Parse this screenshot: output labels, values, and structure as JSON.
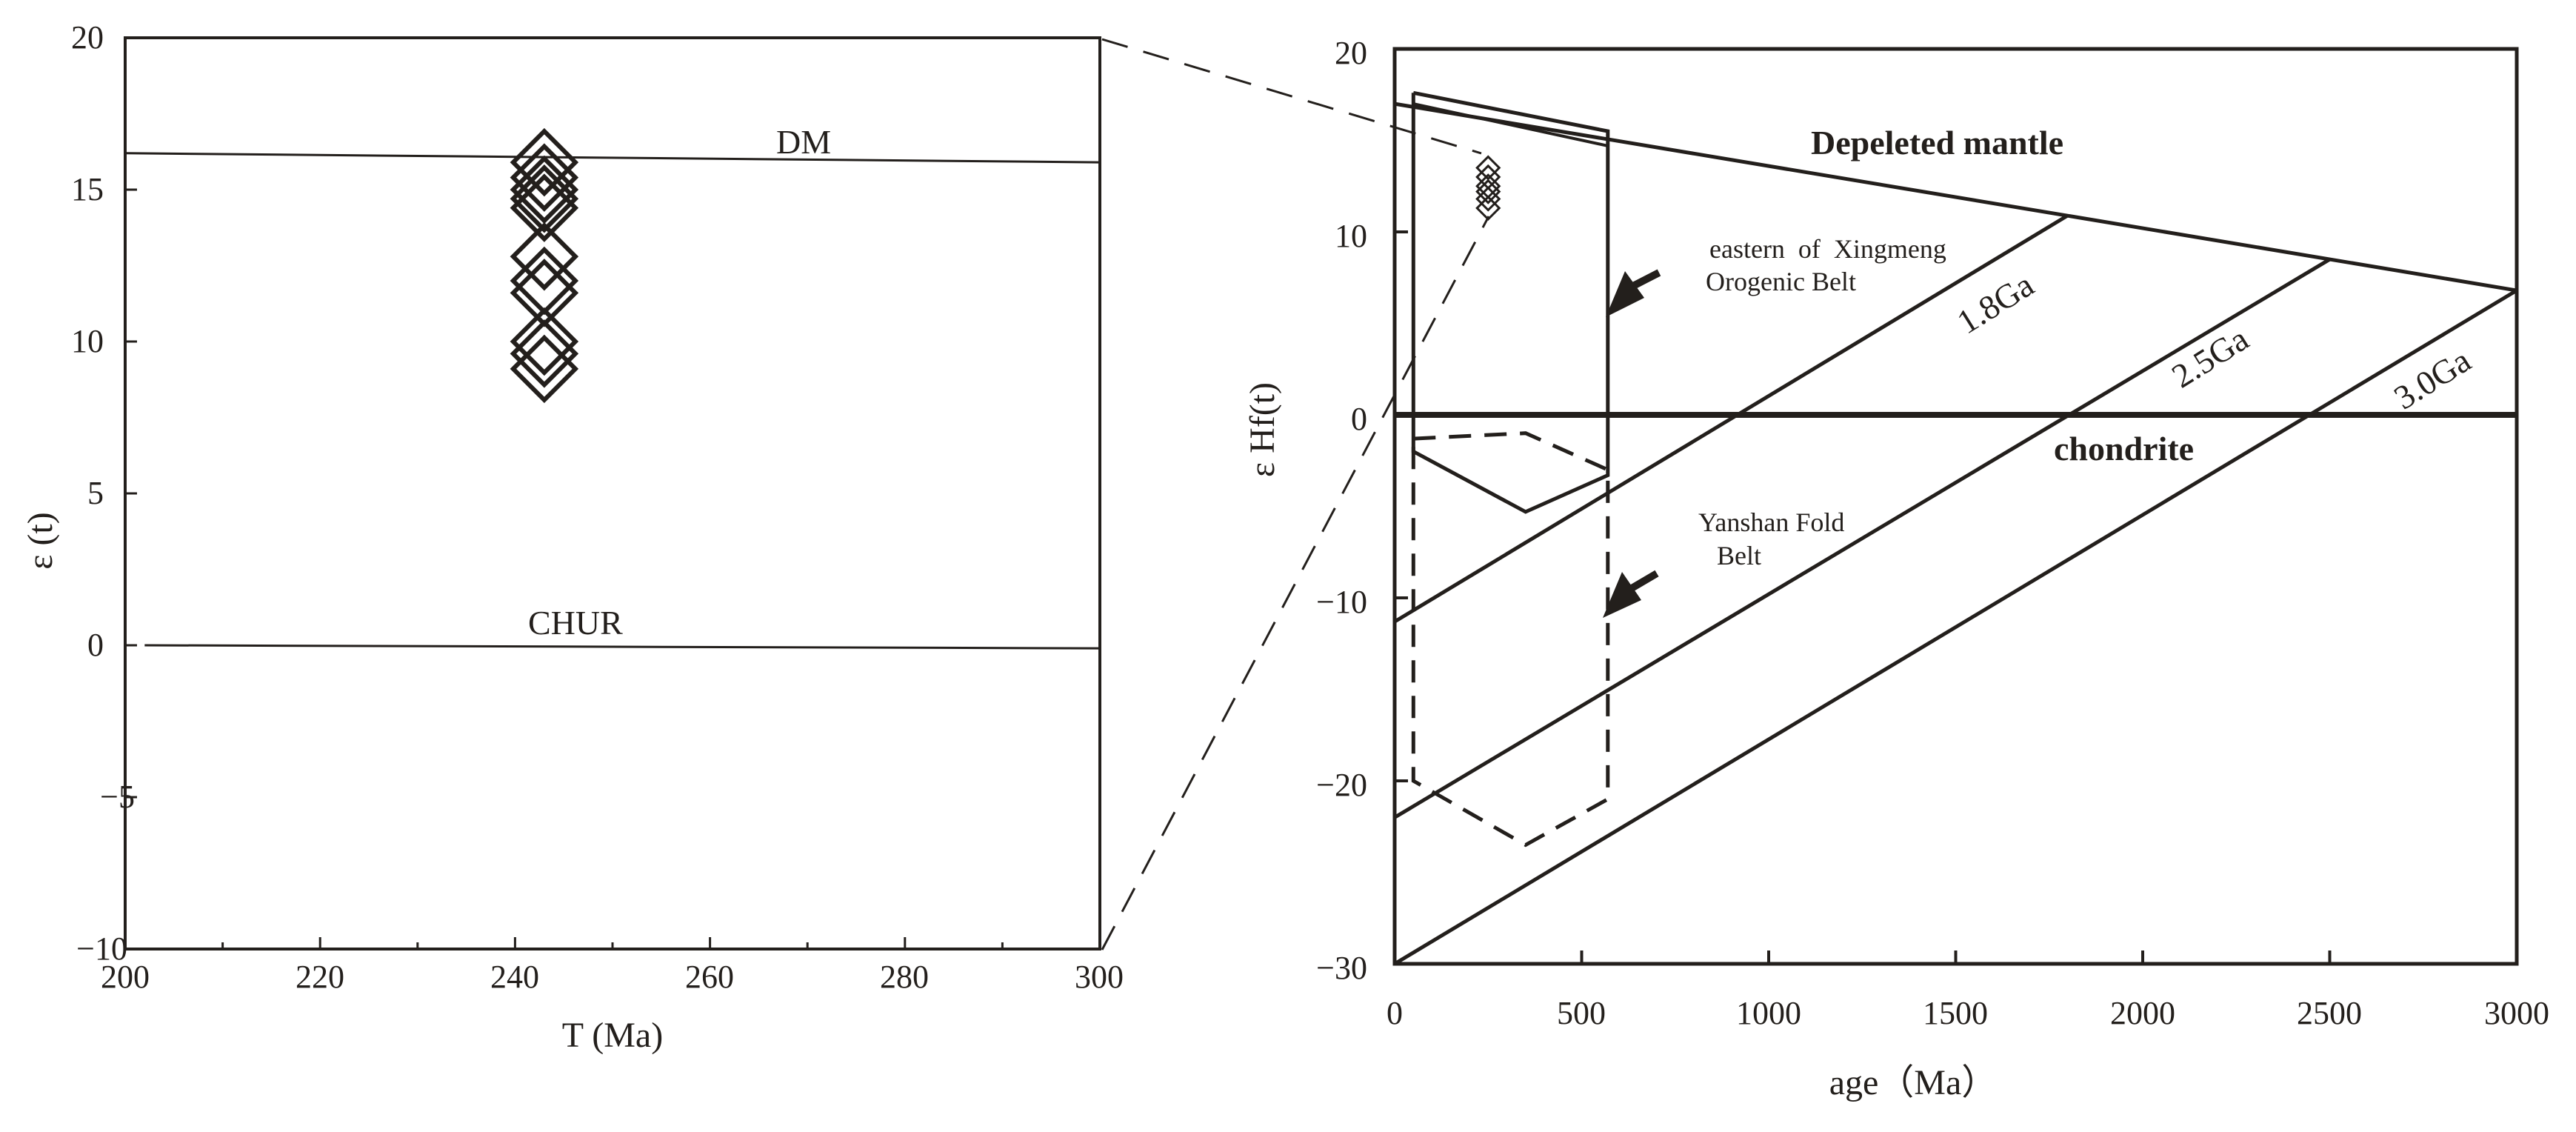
{
  "chart_data": [
    {
      "type": "scatter",
      "title": "",
      "xlabel": "T (Ma)",
      "ylabel": "ε (t)",
      "xlim": [
        200,
        300
      ],
      "ylim": [
        -10,
        20
      ],
      "xticks": [
        "200",
        "220",
        "240",
        "260",
        "280",
        "300"
      ],
      "yticks": [
        "20",
        "15",
        "10",
        "5",
        "0",
        "−5",
        "−10"
      ],
      "reference_lines": [
        {
          "name": "DM",
          "x": [
            200,
            300
          ],
          "y": [
            16.2,
            15.9
          ]
        },
        {
          "name": "CHUR",
          "x": [
            202,
            300
          ],
          "y": [
            0,
            -0.1
          ]
        }
      ],
      "series": [
        {
          "marker": "open-diamond",
          "x": [
            243,
            243,
            243,
            243,
            243,
            243,
            243,
            243,
            243,
            243,
            243
          ],
          "y": [
            15.9,
            15.4,
            15.0,
            14.7,
            14.4,
            12.8,
            12.0,
            11.6,
            10.0,
            9.6,
            9.1
          ]
        }
      ]
    },
    {
      "type": "line",
      "title": "",
      "xlabel": "age（Ma）",
      "ylabel": "ε Hf(t)",
      "xlim": [
        0,
        3000
      ],
      "ylim": [
        -30,
        20
      ],
      "xticks": [
        "0",
        "500",
        "1000",
        "1500",
        "2000",
        "2500",
        "3000"
      ],
      "yticks": [
        "20",
        "10",
        "0",
        "−10",
        "−20",
        "−30"
      ],
      "lines": [
        {
          "name": "Depeleted mantle",
          "x": [
            0,
            3000
          ],
          "y": [
            17,
            6.8
          ]
        },
        {
          "name": "chondrite",
          "x": [
            0,
            3000
          ],
          "y": [
            0,
            0
          ]
        },
        {
          "name": "1.8Ga",
          "x": [
            0,
            1800
          ],
          "y": [
            -11.3,
            10.9
          ]
        },
        {
          "name": "2.5Ga",
          "x": [
            0,
            2500
          ],
          "y": [
            -22,
            8.5
          ]
        },
        {
          "name": "3.0Ga",
          "x": [
            0,
            3000
          ],
          "y": [
            -30,
            6.8
          ]
        }
      ],
      "regions": [
        {
          "name": "eastern of Xingmeng Orogenic Belt",
          "style": "solid",
          "x": [
            50,
            50,
            570,
            570,
            350,
            50
          ],
          "y": [
            17.6,
            -2,
            15.5,
            -3.3,
            -5.3,
            -2
          ],
          "path": [
            [
              50,
              17.6
            ],
            [
              570,
              15.5
            ],
            [
              570,
              -3.3
            ],
            [
              350,
              -5.3
            ],
            [
              50,
              -2
            ],
            [
              50,
              17.6
            ]
          ],
          "inner_edge": [
            [
              50,
              17
            ],
            [
              570,
              14.7
            ]
          ]
        },
        {
          "name": "Yanshan Fold Belt",
          "style": "dashed",
          "path": [
            [
              50,
              -1.3
            ],
            [
              350,
              -1
            ],
            [
              570,
              -3
            ],
            [
              570,
              -21
            ],
            [
              350,
              -23.5
            ],
            [
              50,
              -20
            ],
            [
              50,
              -1.3
            ]
          ]
        }
      ],
      "series": [
        {
          "marker": "open-diamond",
          "x": [
            250,
            250,
            250,
            250,
            250,
            250
          ],
          "y": [
            13.5,
            13.0,
            12.5,
            12.2,
            11.8,
            11.3
          ]
        }
      ],
      "annotations": [
        "eastern  of  Xingmeng",
        "Orogenic Belt",
        "Yanshan Fold",
        "Belt"
      ]
    }
  ]
}
